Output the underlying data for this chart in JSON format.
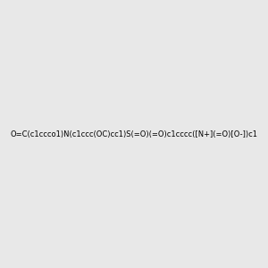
{
  "smiles": "O=C(c1ccco1)N(c1ccc(OC)cc1)S(=O)(=O)c1cccc([N+](=O)[O-])c1",
  "bg_color": "#e8e8e8",
  "bond_color": "#1a1a1a",
  "bond_width": 1.8,
  "atom_colors": {
    "O": "#ff0000",
    "N": "#0000ff",
    "S": "#cccc00",
    "C": "#1a1a1a"
  },
  "font_size": 9,
  "figsize": [
    3.0,
    3.0
  ],
  "dpi": 100
}
